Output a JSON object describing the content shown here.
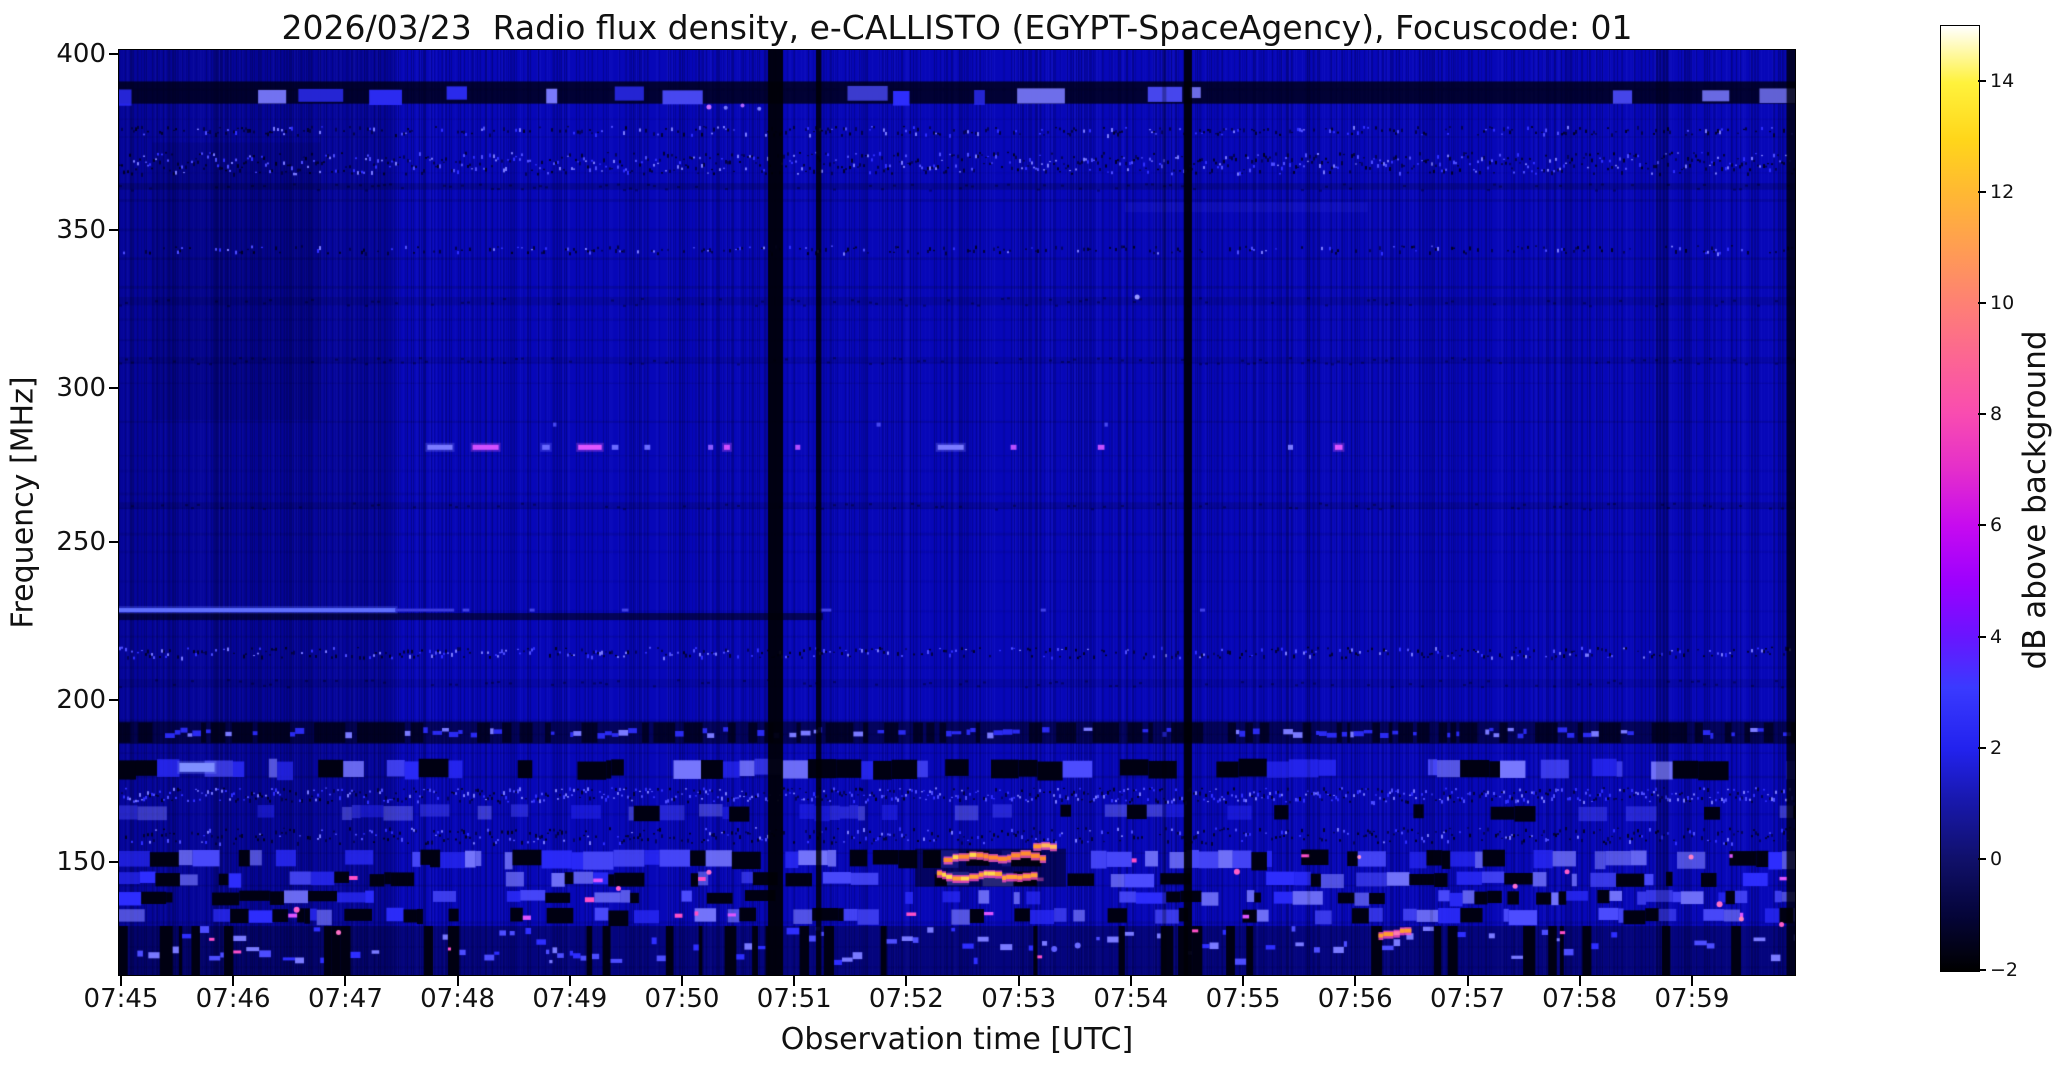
{
  "figure": {
    "title": "2026/03/23  Radio flux density, e-CALLISTO (EGYPT-SpaceAgency), Focuscode: 01"
  },
  "chart_data": {
    "type": "heatmap",
    "subtype": "radio-spectrogram",
    "title": "2026/03/23  Radio flux density, e-CALLISTO (EGYPT-SpaceAgency), Focuscode: 01",
    "station": "e-CALLISTO (EGYPT-SpaceAgency)",
    "date": "2026/03/23",
    "focuscode": "01",
    "xlabel": "Observation time [UTC]",
    "ylabel": "Frequency [MHz]",
    "x_range": [
      "07:45",
      "08:00"
    ],
    "y_range_mhz": [
      113,
      403
    ],
    "grid": false,
    "x_ticks": [
      {
        "label": "07:45",
        "f": 0.0012
      },
      {
        "label": "07:46",
        "f": 0.0681
      },
      {
        "label": "07:47",
        "f": 0.1351
      },
      {
        "label": "07:48",
        "f": 0.202
      },
      {
        "label": "07:49",
        "f": 0.269
      },
      {
        "label": "07:50",
        "f": 0.3359
      },
      {
        "label": "07:51",
        "f": 0.4029
      },
      {
        "label": "07:52",
        "f": 0.4698
      },
      {
        "label": "07:53",
        "f": 0.5368
      },
      {
        "label": "07:54",
        "f": 0.6037
      },
      {
        "label": "07:55",
        "f": 0.6707
      },
      {
        "label": "07:56",
        "f": 0.7376
      },
      {
        "label": "07:57",
        "f": 0.8046
      },
      {
        "label": "07:58",
        "f": 0.8715
      },
      {
        "label": "07:59",
        "f": 0.9385
      }
    ],
    "y_ticks": [
      {
        "label": "400",
        "f": 0.004
      },
      {
        "label": "350",
        "f": 0.195
      },
      {
        "label": "300",
        "f": 0.365
      },
      {
        "label": "250",
        "f": 0.532
      },
      {
        "label": "200",
        "f": 0.703
      },
      {
        "label": "150",
        "f": 0.878
      }
    ],
    "colorbar": {
      "label": "dB above background",
      "vmin": -2,
      "vmax": 15,
      "colormap": "gnuplot2",
      "ticks": [
        {
          "label": "14",
          "f": 0.0588
        },
        {
          "label": "12",
          "f": 0.1765
        },
        {
          "label": "10",
          "f": 0.2941
        },
        {
          "label": "8",
          "f": 0.4118
        },
        {
          "label": "6",
          "f": 0.5294
        },
        {
          "label": "4",
          "f": 0.6471
        },
        {
          "label": "2",
          "f": 0.7647
        },
        {
          "label": "0",
          "f": 0.8824
        },
        {
          "label": "−2",
          "f": 1.0
        }
      ],
      "stops": [
        {
          "p": 0.0,
          "c": "#000000"
        },
        {
          "p": 0.06,
          "c": "#05053a"
        },
        {
          "p": 0.118,
          "c": "#10106a"
        },
        {
          "p": 0.18,
          "c": "#1818ac"
        },
        {
          "p": 0.235,
          "c": "#2222ee"
        },
        {
          "p": 0.3,
          "c": "#3a3aff"
        },
        {
          "p": 0.355,
          "c": "#6a14ff"
        },
        {
          "p": 0.41,
          "c": "#9b00ff"
        },
        {
          "p": 0.47,
          "c": "#c60af0"
        },
        {
          "p": 0.53,
          "c": "#e42ecb"
        },
        {
          "p": 0.59,
          "c": "#f94cb0"
        },
        {
          "p": 0.65,
          "c": "#fc6692"
        },
        {
          "p": 0.71,
          "c": "#fe8272"
        },
        {
          "p": 0.765,
          "c": "#ff9d52"
        },
        {
          "p": 0.825,
          "c": "#ffb932"
        },
        {
          "p": 0.88,
          "c": "#ffd61a"
        },
        {
          "p": 0.94,
          "c": "#fff23c"
        },
        {
          "p": 1.0,
          "c": "#ffffff"
        }
      ]
    },
    "palette": {
      "bg": "#0707b8",
      "bright1": "#2e2eff",
      "bright2": "#4d4dff",
      "bright3": "#7a7aff",
      "dark": "#000012",
      "pink": "#ff50c8",
      "magenta": "#e055ff",
      "orange": "#ff9b30",
      "yellow": "#ffd84a"
    },
    "bands": [
      {
        "name": "rfi-390mhz",
        "y": [
          0.034,
          0.058
        ],
        "style": "blobs",
        "alpha": 0.82,
        "cover": 0.62
      },
      {
        "name": "band-380mhz",
        "y": [
          0.082,
          0.091
        ],
        "style": "speckle",
        "pDark": 0.3,
        "pBright": 0.12
      },
      {
        "name": "rfi-370mhz",
        "y": [
          0.11,
          0.133
        ],
        "style": "speckle",
        "pDark": 0.55,
        "pBright": 0.38
      },
      {
        "name": "line-362mhz",
        "y": [
          0.144,
          0.151
        ],
        "style": "shade",
        "a": 0.18
      },
      {
        "name": "line-344mhz",
        "y": [
          0.211,
          0.219
        ],
        "style": "speckle",
        "pDark": 0.22,
        "pBright": 0.08
      },
      {
        "name": "line-330mhz",
        "y": [
          0.267,
          0.276
        ],
        "style": "shade",
        "a": 0.12
      },
      {
        "name": "line-312mhz",
        "y": [
          0.332,
          0.339
        ],
        "style": "shade",
        "a": 0.1
      },
      {
        "name": "line-262mhz",
        "y": [
          0.489,
          0.496
        ],
        "style": "shade",
        "a": 0.14
      },
      {
        "name": "line-215mhz",
        "y": [
          0.645,
          0.656
        ],
        "style": "speckle",
        "pDark": 0.28,
        "pBright": 0.22
      },
      {
        "name": "line-205mhz",
        "y": [
          0.68,
          0.688
        ],
        "style": "shade",
        "a": 0.1
      },
      {
        "name": "rfi-190mhz",
        "y": [
          0.726,
          0.75
        ],
        "style": "darkdash"
      },
      {
        "name": "band-180mhz",
        "y": [
          0.765,
          0.788
        ],
        "style": "patch",
        "pB": 0.3,
        "pBr": 0.42
      },
      {
        "name": "band-170mhz",
        "y": [
          0.797,
          0.812
        ],
        "style": "speckle",
        "pDark": 0.28,
        "pBright": 0.55
      },
      {
        "name": "band-165mhz",
        "y": [
          0.814,
          0.833
        ],
        "style": "patch",
        "pB": 0.12,
        "pBr": 0.3,
        "dim": true
      },
      {
        "name": "band-157mhz",
        "y": [
          0.84,
          0.857
        ],
        "style": "speckle",
        "pDark": 0.4,
        "pBright": 0.18
      },
      {
        "name": "band-151mhz",
        "y": [
          0.863,
          0.885
        ],
        "style": "heavy",
        "pB": 0.22,
        "pBr": 0.45,
        "pPink": 0.045
      },
      {
        "name": "band-145mhz",
        "y": [
          0.887,
          0.905
        ],
        "style": "heavy",
        "pB": 0.2,
        "pBr": 0.4,
        "pPink": 0.055
      },
      {
        "name": "band-137mhz",
        "y": [
          0.907,
          0.924
        ],
        "style": "heavy",
        "pB": 0.16,
        "pBr": 0.38,
        "pPink": 0.045
      },
      {
        "name": "band-130mhz",
        "y": [
          0.926,
          0.945
        ],
        "style": "heavy",
        "pB": 0.18,
        "pBr": 0.36,
        "pPink": 0.045
      },
      {
        "name": "band-bottom",
        "y": [
          0.947,
          1.0
        ],
        "style": "bottom",
        "pB": 0.15,
        "pBr": 0.45,
        "pPink": 0.02
      }
    ],
    "vertical_lines": [
      {
        "x": 0.3872,
        "w": 0.009,
        "a": 0.93
      },
      {
        "x": 0.4159,
        "w": 0.0032,
        "a": 0.86
      },
      {
        "x": 0.6225,
        "w": 0.0024,
        "a": 0.3
      },
      {
        "x": 0.6354,
        "w": 0.0048,
        "a": 0.93
      },
      {
        "x": 0.709,
        "w": 0.0018,
        "a": 0.13
      },
      {
        "x": 0.7822,
        "w": 0.0018,
        "a": 0.13
      },
      {
        "x": 0.917,
        "w": 0.008,
        "a": 0.16
      },
      {
        "x": 0.995,
        "w": 0.0052,
        "a": 0.78
      }
    ],
    "dash_features": [
      {
        "y": 0.4295,
        "x0": 0.184,
        "x1": 0.199,
        "h": 5,
        "c": "#7a7aff",
        "glow": true
      },
      {
        "y": 0.4295,
        "x0": 0.211,
        "x1": 0.2265,
        "h": 5,
        "c": "#d24fff",
        "glow": true
      },
      {
        "y": 0.4295,
        "x0": 0.2525,
        "x1": 0.257,
        "h": 5,
        "c": "#6a6aff",
        "glow": true
      },
      {
        "y": 0.4295,
        "x0": 0.274,
        "x1": 0.288,
        "h": 5,
        "c": "#e055ff",
        "glow": true
      },
      {
        "y": 0.4295,
        "x0": 0.294,
        "x1": 0.298,
        "h": 5,
        "c": "#6a6aff",
        "glow": false
      },
      {
        "y": 0.4295,
        "x0": 0.3135,
        "x1": 0.317,
        "h": 5,
        "c": "#6a6aff",
        "glow": false
      },
      {
        "y": 0.4295,
        "x0": 0.3515,
        "x1": 0.3545,
        "h": 5,
        "c": "#8a5aff",
        "glow": false
      },
      {
        "y": 0.4295,
        "x0": 0.361,
        "x1": 0.3645,
        "h": 5,
        "c": "#d24fff",
        "glow": true
      },
      {
        "y": 0.4295,
        "x0": 0.4035,
        "x1": 0.4065,
        "h": 5,
        "c": "#b14fff",
        "glow": false
      },
      {
        "y": 0.4295,
        "x0": 0.4885,
        "x1": 0.504,
        "h": 5,
        "c": "#7a7aff",
        "glow": true
      },
      {
        "y": 0.4295,
        "x0": 0.532,
        "x1": 0.5355,
        "h": 5,
        "c": "#b84fff",
        "glow": false
      },
      {
        "y": 0.4295,
        "x0": 0.584,
        "x1": 0.588,
        "h": 5,
        "c": "#c44fff",
        "glow": false
      },
      {
        "y": 0.4295,
        "x0": 0.6975,
        "x1": 0.7005,
        "h": 5,
        "c": "#7a7aff",
        "glow": false
      },
      {
        "y": 0.4295,
        "x0": 0.7255,
        "x1": 0.73,
        "h": 5,
        "c": "#e055ff",
        "glow": true
      },
      {
        "y": 0.405,
        "x0": 0.259,
        "x1": 0.261,
        "h": 4,
        "c": "#4747ee",
        "glow": false
      },
      {
        "y": 0.405,
        "x0": 0.452,
        "x1": 0.4545,
        "h": 4,
        "c": "#4747ee",
        "glow": false
      },
      {
        "y": 0.405,
        "x0": 0.588,
        "x1": 0.59,
        "h": 4,
        "c": "#4747ee",
        "glow": false
      },
      {
        "y": 0.6055,
        "x0": 0.0,
        "x1": 0.165,
        "h": 4,
        "c": "#5f6fff",
        "glow": true
      },
      {
        "y": 0.6055,
        "x0": 0.165,
        "x1": 0.2,
        "h": 3,
        "c": "#3a3ae0",
        "glow": false
      },
      {
        "y": 0.6125,
        "x0": 0.0,
        "x1": 0.42,
        "h": 7,
        "c": "rgba(0,0,10,0.55)",
        "glow": false
      },
      {
        "y": 0.6055,
        "x0": 0.205,
        "x1": 0.209,
        "h": 3,
        "c": "#4040e8",
        "glow": false
      },
      {
        "y": 0.6055,
        "x0": 0.245,
        "x1": 0.248,
        "h": 3,
        "c": "#4040e8",
        "glow": false
      },
      {
        "y": 0.6055,
        "x0": 0.3,
        "x1": 0.304,
        "h": 3,
        "c": "#4040e8",
        "glow": false
      },
      {
        "y": 0.6055,
        "x0": 0.418,
        "x1": 0.425,
        "h": 3,
        "c": "#4040e8",
        "glow": false
      },
      {
        "y": 0.6055,
        "x0": 0.55,
        "x1": 0.553,
        "h": 3,
        "c": "#4040e8",
        "glow": false
      },
      {
        "y": 0.6055,
        "x0": 0.645,
        "x1": 0.648,
        "h": 3,
        "c": "#4040e8",
        "glow": false
      },
      {
        "y": 0.17,
        "x0": 0.6,
        "x1": 0.745,
        "h": 10,
        "c": "rgba(90,90,255,0.10)",
        "glow": false
      },
      {
        "y": 0.884,
        "x0": 0.475,
        "x1": 0.565,
        "h": 38,
        "c": "rgba(0,0,12,0.50)",
        "glow": false
      },
      {
        "y": 0.7755,
        "x0": 0.036,
        "x1": 0.057,
        "h": 9,
        "c": "#7f8fff",
        "glow": true
      }
    ],
    "streaks": [
      {
        "y": 0.8715,
        "x0": 0.492,
        "x1": 0.553,
        "core": "#ff8c2e",
        "alt": "#ffd84a",
        "edge": "#ff5fbe"
      },
      {
        "y": 0.8925,
        "x0": 0.488,
        "x1": 0.5455,
        "core": "#ffa435",
        "alt": "#ffd84a",
        "edge": "#ff4fc2"
      },
      {
        "y": 0.862,
        "x0": 0.5455,
        "x1": 0.557,
        "core": "#ff9b30",
        "alt": "#ffb95a",
        "edge": "#ff5fbe"
      },
      {
        "y": 0.9535,
        "x0": 0.7515,
        "x1": 0.77,
        "core": "#ff9b30",
        "alt": "#ff7ab0",
        "edge": "#ff50c8"
      }
    ],
    "dots": [
      {
        "x": 0.6075,
        "y": 0.267,
        "c": "#9a9aff",
        "r": 2.5
      },
      {
        "x": 0.352,
        "y": 0.0615,
        "c": "#cf6fff",
        "r": 2.5
      },
      {
        "x": 0.362,
        "y": 0.0625,
        "c": "#7a7aff",
        "r": 2.0
      },
      {
        "x": 0.372,
        "y": 0.06,
        "c": "#b066ff",
        "r": 2.0
      },
      {
        "x": 0.382,
        "y": 0.0635,
        "c": "#8080ff",
        "r": 2.0
      },
      {
        "x": 0.106,
        "y": 0.9295,
        "c": "#ff5fd0",
        "r": 3.0
      },
      {
        "x": 0.131,
        "y": 0.954,
        "c": "#ff70c8",
        "r": 2.5
      },
      {
        "x": 0.298,
        "y": 0.9065,
        "c": "#ff5fd0",
        "r": 2.5
      },
      {
        "x": 0.352,
        "y": 0.889,
        "c": "#ff6fd0",
        "r": 2.5
      },
      {
        "x": 0.667,
        "y": 0.8885,
        "c": "#ff5fc8",
        "r": 3.0
      },
      {
        "x": 0.74,
        "y": 0.8725,
        "c": "#ff90d0",
        "r": 2.0
      },
      {
        "x": 0.833,
        "y": 0.904,
        "c": "#ff6fd0",
        "r": 2.5
      },
      {
        "x": 0.864,
        "y": 0.8885,
        "c": "#ff5fc8",
        "r": 2.5
      },
      {
        "x": 0.938,
        "y": 0.8725,
        "c": "#ff80c8",
        "r": 2.5
      },
      {
        "x": 0.955,
        "y": 0.9235,
        "c": "#ff70c8",
        "r": 3.0
      },
      {
        "x": 0.968,
        "y": 0.9395,
        "c": "#ff80c0",
        "r": 2.5
      },
      {
        "x": 0.992,
        "y": 0.9455,
        "c": "#ff5fc8",
        "r": 2.5
      },
      {
        "x": 0.558,
        "y": 0.972,
        "c": "#5f5fff",
        "r": 3.0
      },
      {
        "x": 0.572,
        "y": 0.968,
        "c": "#6a6aff",
        "r": 3.0
      }
    ]
  }
}
